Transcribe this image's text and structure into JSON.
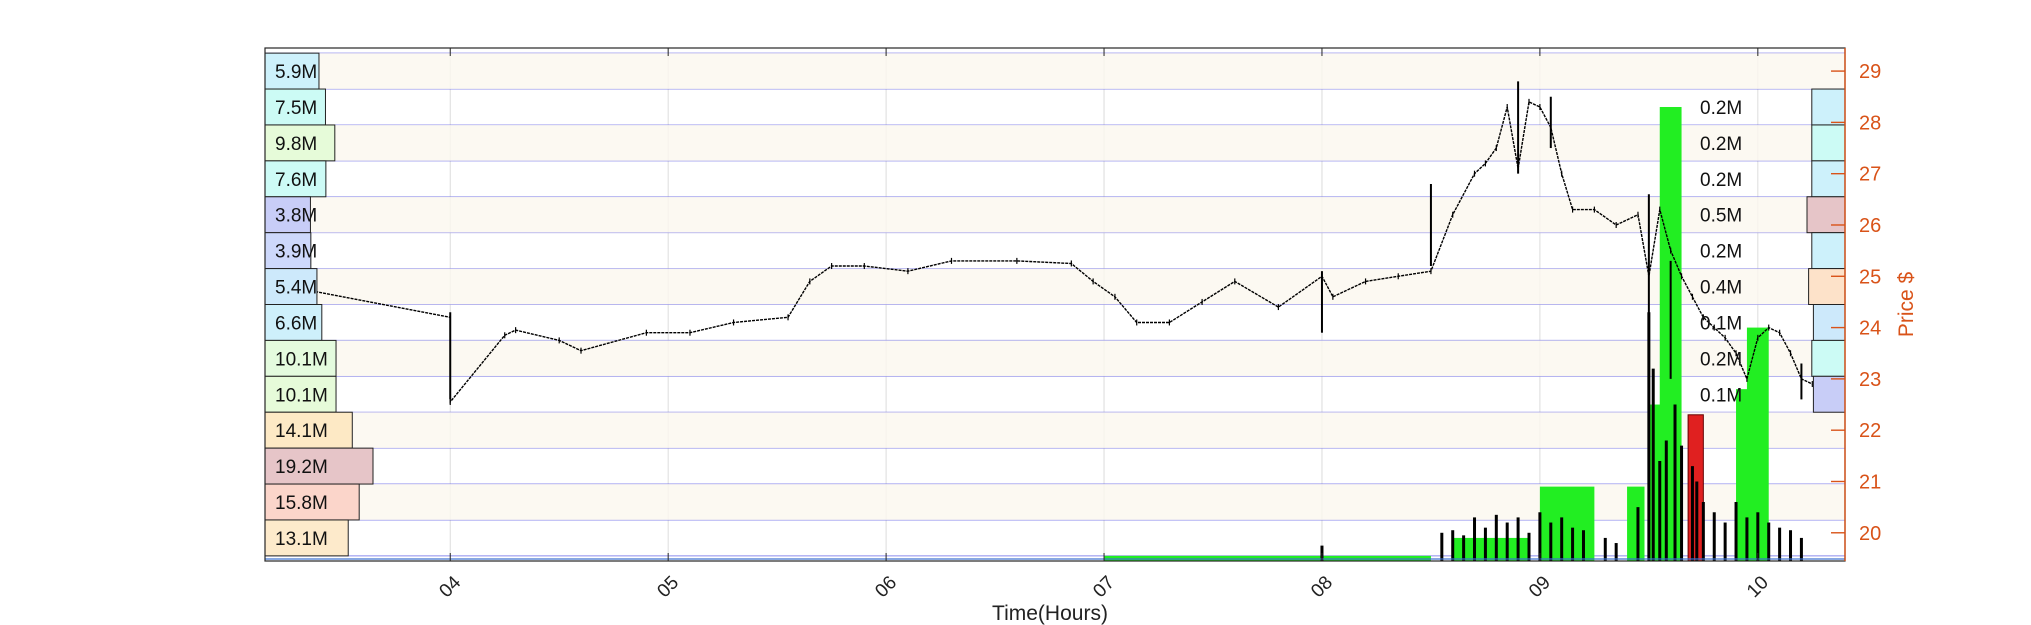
{
  "chart_data": {
    "type": "line",
    "xlabel": "Time(Hours)",
    "ylabel": "Price $",
    "x_tick_labels": [
      "04",
      "05",
      "06",
      "07",
      "08",
      "09",
      "10"
    ],
    "xlim_hours": [
      3.15,
      10.4
    ],
    "ylim": [
      19.45,
      29.45
    ],
    "y_ticks": [
      20,
      21,
      22,
      23,
      24,
      25,
      26,
      27,
      28,
      29
    ],
    "grid": true,
    "colors": {
      "price_axis": "#d95319",
      "level_line": "#5a5ae6",
      "volume_green": "#22ee22",
      "volume_red": "#e02020",
      "price_line": "#000000",
      "hbar_edge": "#222222"
    },
    "price_series": {
      "name": "",
      "x": [
        3.2,
        4.0,
        4.0,
        4.25,
        4.3,
        4.5,
        4.6,
        4.9,
        5.1,
        5.3,
        5.55,
        5.65,
        5.75,
        5.9,
        6.1,
        6.3,
        6.6,
        6.85,
        6.95,
        7.05,
        7.15,
        7.3,
        7.45,
        7.6,
        7.8,
        8.0,
        8.05,
        8.2,
        8.35,
        8.5,
        8.6,
        8.7,
        8.75,
        8.8,
        8.85,
        8.9,
        8.95,
        9.0,
        9.05,
        9.1,
        9.15,
        9.25,
        9.35,
        9.45,
        9.5,
        9.55,
        9.6,
        9.65,
        9.7,
        9.75,
        9.8,
        9.85,
        9.9,
        9.95,
        10.0,
        10.05,
        10.1,
        10.15,
        10.2,
        10.25
      ],
      "y": [
        24.85,
        24.2,
        22.55,
        23.85,
        23.95,
        23.75,
        23.55,
        23.9,
        23.9,
        24.1,
        24.2,
        24.9,
        25.2,
        25.2,
        25.1,
        25.3,
        25.3,
        25.25,
        24.9,
        24.6,
        24.1,
        24.1,
        24.5,
        24.9,
        24.4,
        25.0,
        24.6,
        24.9,
        25.0,
        25.1,
        26.2,
        27.0,
        27.2,
        27.5,
        28.3,
        27.1,
        28.4,
        28.3,
        27.9,
        27.0,
        26.3,
        26.3,
        26.0,
        26.2,
        25.0,
        26.3,
        25.5,
        25.0,
        24.6,
        24.2,
        24.0,
        23.8,
        23.5,
        23.0,
        23.8,
        24.0,
        23.9,
        23.5,
        23.0,
        22.9
      ],
      "ranges": [
        [
          4.0,
          22.6,
          24.3
        ],
        [
          8.0,
          23.9,
          25.1
        ],
        [
          8.5,
          25.2,
          26.8
        ],
        [
          8.9,
          27.0,
          28.8
        ],
        [
          9.05,
          27.5,
          28.5
        ],
        [
          9.5,
          24.0,
          26.6
        ],
        [
          9.6,
          23.0,
          25.3
        ],
        [
          10.2,
          22.6,
          23.3
        ]
      ]
    },
    "price_level_volume_left": {
      "name": "",
      "prices": [
        29.0,
        28.3,
        27.6,
        26.9,
        26.2,
        25.5,
        24.8,
        24.1,
        23.4,
        22.7,
        22.0,
        21.3,
        20.6,
        19.9
      ],
      "labels": [
        "5.9M",
        "7.5M",
        "9.8M",
        "7.6M",
        "3.8M",
        "3.9M",
        "5.4M",
        "6.6M",
        "10.1M",
        "10.1M",
        "14.1M",
        "19.2M",
        "15.8M",
        "13.1M"
      ],
      "values": [
        5.9,
        7.5,
        9.8,
        7.6,
        3.8,
        3.9,
        5.4,
        6.6,
        10.1,
        10.1,
        14.1,
        19.2,
        15.8,
        13.1
      ],
      "fill_colors": [
        "#cdf1fb",
        "#ccfbf5",
        "#e6fbd9",
        "#cdfbf6",
        "#c8cdf7",
        "#cdd8fb",
        "#cde9fb",
        "#cef0fb",
        "#e4fbde",
        "#e6fbd9",
        "#fde9c5",
        "#e6c5c8",
        "#fbd5ca",
        "#fdeacb"
      ]
    },
    "price_level_volume_right": {
      "name": "",
      "prices": [
        28.3,
        27.6,
        26.9,
        26.2,
        25.5,
        24.8,
        24.1,
        23.4,
        22.7
      ],
      "labels": [
        "0.2M",
        "0.2M",
        "0.2M",
        "0.5M",
        "0.2M",
        "0.4M",
        "0.1M",
        "0.2M",
        "0.1M"
      ],
      "values": [
        0.2,
        0.2,
        0.2,
        0.5,
        0.2,
        0.4,
        0.1,
        0.2,
        0.1
      ],
      "fill_colors": [
        "#cdf1fb",
        "#ccfbf5",
        "#cdf1fb",
        "#e6c5c8",
        "#cdf1fb",
        "#fde2c9",
        "#cde9fb",
        "#ccfbf5",
        "#c8cdf7"
      ]
    },
    "volume_blocks_green": [
      [
        7.0,
        8.5,
        19.55
      ],
      [
        8.6,
        8.95,
        19.9
      ],
      [
        9.0,
        9.25,
        20.9
      ],
      [
        9.4,
        9.48,
        20.9
      ],
      [
        9.5,
        9.6,
        22.5
      ],
      [
        9.55,
        9.65,
        28.3
      ],
      [
        9.9,
        9.98,
        22.8
      ],
      [
        9.95,
        10.05,
        24.0
      ]
    ],
    "volume_blocks_red": [
      [
        9.68,
        9.75,
        22.3
      ]
    ],
    "volume_spikes": [
      [
        8.0,
        19.75
      ],
      [
        8.55,
        20.0
      ],
      [
        8.6,
        20.05
      ],
      [
        8.65,
        19.95
      ],
      [
        8.7,
        20.3
      ],
      [
        8.75,
        20.1
      ],
      [
        8.8,
        20.35
      ],
      [
        8.85,
        20.2
      ],
      [
        8.9,
        20.3
      ],
      [
        8.95,
        20.0
      ],
      [
        9.0,
        20.4
      ],
      [
        9.05,
        20.2
      ],
      [
        9.1,
        20.3
      ],
      [
        9.15,
        20.1
      ],
      [
        9.2,
        20.05
      ],
      [
        9.3,
        19.9
      ],
      [
        9.35,
        19.8
      ],
      [
        9.45,
        20.5
      ],
      [
        9.5,
        24.3
      ],
      [
        9.52,
        23.2
      ],
      [
        9.55,
        21.4
      ],
      [
        9.58,
        21.8
      ],
      [
        9.62,
        22.5
      ],
      [
        9.65,
        21.7
      ],
      [
        9.7,
        21.3
      ],
      [
        9.72,
        21.0
      ],
      [
        9.75,
        20.6
      ],
      [
        9.8,
        20.4
      ],
      [
        9.85,
        20.2
      ],
      [
        9.9,
        20.6
      ],
      [
        9.95,
        20.3
      ],
      [
        10.0,
        20.4
      ],
      [
        10.05,
        20.2
      ],
      [
        10.1,
        20.1
      ],
      [
        10.15,
        20.05
      ],
      [
        10.2,
        19.9
      ]
    ]
  }
}
